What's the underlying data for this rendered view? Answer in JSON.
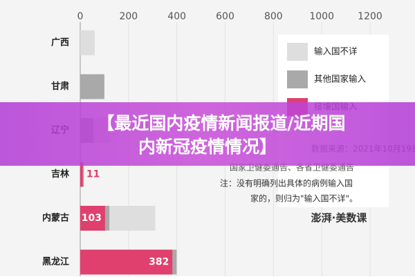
{
  "chart_data": {
    "type": "stacked-barh",
    "categories": [
      "广西",
      "甘肃",
      "辽宁",
      "吉林",
      "内蒙古",
      "黑龙江"
    ],
    "series": [
      {
        "name": "接壤国输入",
        "color": "#e0406e",
        "values": [
          0,
          0,
          0,
          11,
          103,
          382
        ]
      },
      {
        "name": "其他国家输入",
        "color": "#a9a9a9",
        "values": [
          0,
          100,
          55,
          4,
          18,
          17
        ]
      },
      {
        "name": "输入国不详",
        "color": "#dedede",
        "values": [
          60,
          0,
          70,
          0,
          190,
          0
        ]
      }
    ],
    "xlim": [
      0,
      1200
    ],
    "xticks": [
      0,
      200,
      400,
      600,
      800,
      1000,
      1200
    ],
    "grid": true,
    "source_lines": [
      "数据来源：2021年10月19日的",
      "国家卫健委通告、各省卫健委通告"
    ],
    "note_lines": [
      "注：没有明确列出具体的病例输入国",
      "家的，则归为\"输入国不详\"。"
    ],
    "brand": "澎湃·美数课"
  },
  "overlay_title_lines": [
    "【最近国内疫情新闻报道/近期国",
    "内新冠疫情情况】"
  ]
}
